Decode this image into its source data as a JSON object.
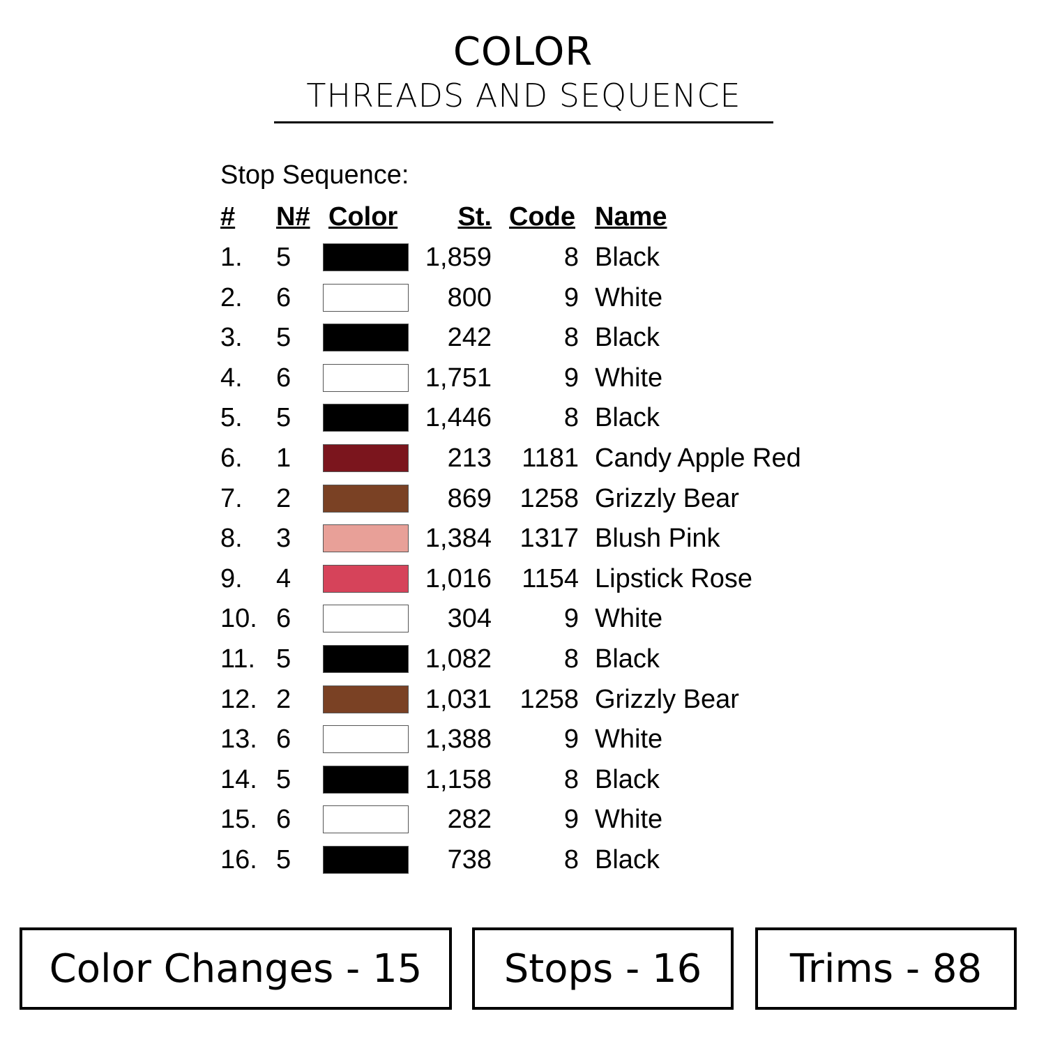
{
  "header": {
    "title": "COLOR",
    "subtitle": "THREADS AND SEQUENCE"
  },
  "stop_sequence_label": "Stop Sequence:",
  "columns": {
    "num": "#",
    "needle": "N#",
    "color": "Color",
    "stitches": "St.",
    "code": "Code",
    "name": "Name"
  },
  "rows": [
    {
      "num": "1.",
      "needle": "5",
      "color": "#000000",
      "stitches": "1,859",
      "code": "8",
      "name": "Black"
    },
    {
      "num": "2.",
      "needle": "6",
      "color": "#ffffff",
      "stitches": "800",
      "code": "9",
      "name": "White"
    },
    {
      "num": "3.",
      "needle": "5",
      "color": "#000000",
      "stitches": "242",
      "code": "8",
      "name": "Black"
    },
    {
      "num": "4.",
      "needle": "6",
      "color": "#ffffff",
      "stitches": "1,751",
      "code": "9",
      "name": "White"
    },
    {
      "num": "5.",
      "needle": "5",
      "color": "#000000",
      "stitches": "1,446",
      "code": "8",
      "name": "Black"
    },
    {
      "num": "6.",
      "needle": "1",
      "color": "#7b151d",
      "stitches": "213",
      "code": "1181",
      "name": "Candy Apple Red"
    },
    {
      "num": "7.",
      "needle": "2",
      "color": "#7a4124",
      "stitches": "869",
      "code": "1258",
      "name": "Grizzly Bear"
    },
    {
      "num": "8.",
      "needle": "3",
      "color": "#e8a098",
      "stitches": "1,384",
      "code": "1317",
      "name": "Blush Pink"
    },
    {
      "num": "9.",
      "needle": "4",
      "color": "#d6435a",
      "stitches": "1,016",
      "code": "1154",
      "name": "Lipstick Rose"
    },
    {
      "num": "10.",
      "needle": "6",
      "color": "#ffffff",
      "stitches": "304",
      "code": "9",
      "name": "White"
    },
    {
      "num": "11.",
      "needle": "5",
      "color": "#000000",
      "stitches": "1,082",
      "code": "8",
      "name": "Black"
    },
    {
      "num": "12.",
      "needle": "2",
      "color": "#7a4124",
      "stitches": "1,031",
      "code": "1258",
      "name": "Grizzly Bear"
    },
    {
      "num": "13.",
      "needle": "6",
      "color": "#ffffff",
      "stitches": "1,388",
      "code": "9",
      "name": "White"
    },
    {
      "num": "14.",
      "needle": "5",
      "color": "#000000",
      "stitches": "1,158",
      "code": "8",
      "name": "Black"
    },
    {
      "num": "15.",
      "needle": "6",
      "color": "#ffffff",
      "stitches": "282",
      "code": "9",
      "name": "White"
    },
    {
      "num": "16.",
      "needle": "5",
      "color": "#000000",
      "stitches": "738",
      "code": "8",
      "name": "Black"
    }
  ],
  "summary": {
    "color_changes": "Color Changes - 15",
    "stops": "Stops - 16",
    "trims": "Trims - 88"
  }
}
